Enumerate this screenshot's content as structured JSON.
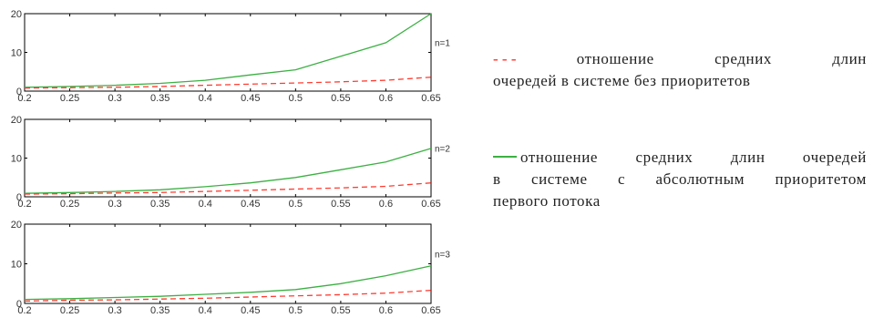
{
  "legend": {
    "dashed_marker": "-   -   -",
    "dashed_line1_text": "отношение средних длин",
    "dashed_line2_text": "очередей в системе без приоритетов",
    "solid_line1_text": "отношение средних длин очередей",
    "solid_line2_text": "в системе с абсолютным приоритетом",
    "solid_line3_text": "первого потока"
  },
  "colors": {
    "solid_series": "#3cb043",
    "dashed_series": "#ff3b30",
    "axes": "#000000"
  },
  "chart_data": [
    {
      "type": "line",
      "annotation": "n=1",
      "x": [
        0.2,
        0.25,
        0.3,
        0.35,
        0.4,
        0.45,
        0.5,
        0.55,
        0.6,
        0.65
      ],
      "xticks": [
        "0.2",
        "0.25",
        "0.3",
        "0.35",
        "0.4",
        "0.45",
        "0.5",
        "0.55",
        "0.6",
        "0.65"
      ],
      "xlim": [
        0.2,
        0.65
      ],
      "yticks": [
        "0",
        "10",
        "20"
      ],
      "ylim": [
        0,
        20
      ],
      "grid": false,
      "series": [
        {
          "style": "solid",
          "values": [
            1.0,
            1.2,
            1.5,
            2.0,
            2.8,
            4.2,
            5.5,
            9.0,
            12.5,
            20.0
          ]
        },
        {
          "style": "dashed",
          "values": [
            0.8,
            0.9,
            1.0,
            1.2,
            1.5,
            1.8,
            2.1,
            2.4,
            2.8,
            3.6
          ]
        }
      ]
    },
    {
      "type": "line",
      "annotation": "n=2",
      "x": [
        0.2,
        0.25,
        0.3,
        0.35,
        0.4,
        0.45,
        0.5,
        0.55,
        0.6,
        0.65
      ],
      "xticks": [
        "0.2",
        "0.25",
        "0.3",
        "0.35",
        "0.4",
        "0.45",
        "0.5",
        "0.55",
        "0.6",
        "0.65"
      ],
      "xlim": [
        0.2,
        0.65
      ],
      "yticks": [
        "0",
        "10",
        "20"
      ],
      "ylim": [
        0,
        20
      ],
      "grid": false,
      "series": [
        {
          "style": "solid",
          "values": [
            0.9,
            1.1,
            1.4,
            1.8,
            2.6,
            3.6,
            5.0,
            7.0,
            9.0,
            12.5
          ]
        },
        {
          "style": "dashed",
          "values": [
            0.7,
            0.8,
            1.0,
            1.1,
            1.4,
            1.7,
            2.0,
            2.3,
            2.7,
            3.6
          ]
        }
      ]
    },
    {
      "type": "line",
      "annotation": "n=3",
      "x": [
        0.2,
        0.25,
        0.3,
        0.35,
        0.4,
        0.45,
        0.5,
        0.55,
        0.6,
        0.65
      ],
      "xticks": [
        "0.2",
        "0.25",
        "0.3",
        "0.35",
        "0.4",
        "0.45",
        "0.5",
        "0.55",
        "0.6",
        "0.65"
      ],
      "xlim": [
        0.2,
        0.65
      ],
      "yticks": [
        "0",
        "10",
        "20"
      ],
      "ylim": [
        0,
        20
      ],
      "grid": false,
      "series": [
        {
          "style": "solid",
          "values": [
            1.0,
            1.2,
            1.5,
            1.8,
            2.3,
            2.8,
            3.5,
            5.0,
            7.0,
            9.5
          ]
        },
        {
          "style": "dashed",
          "values": [
            0.6,
            0.8,
            0.9,
            1.1,
            1.3,
            1.6,
            1.9,
            2.2,
            2.6,
            3.3
          ]
        }
      ]
    }
  ]
}
